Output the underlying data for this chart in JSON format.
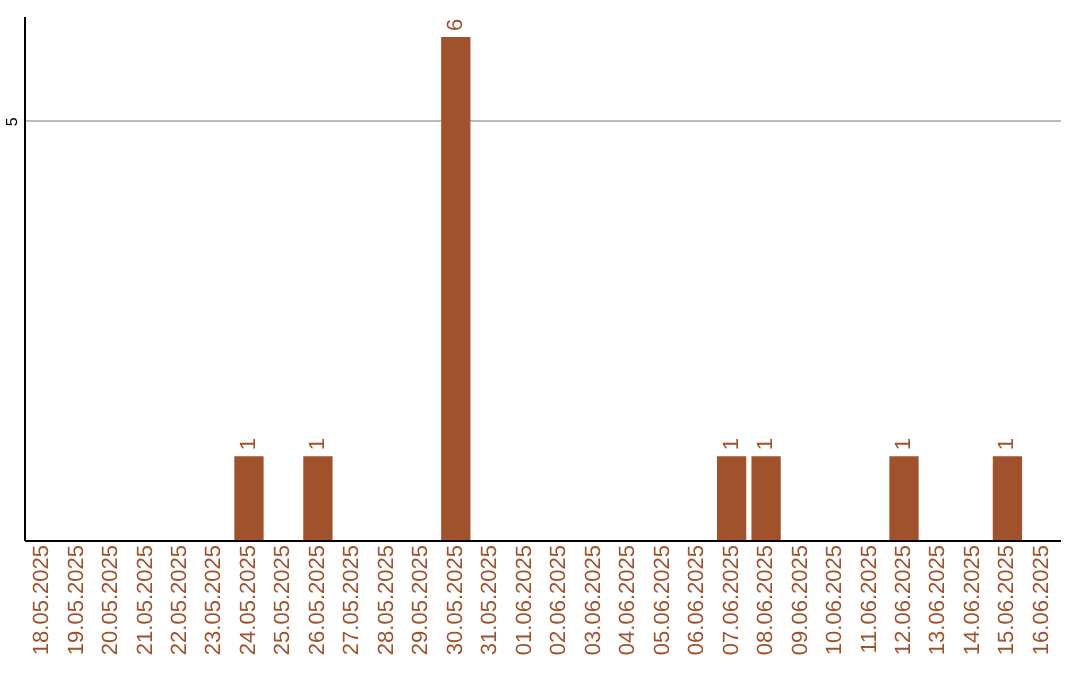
{
  "chart_data": {
    "type": "bar",
    "categories": [
      "18.05.2025",
      "19.05.2025",
      "20.05.2025",
      "21.05.2025",
      "22.05.2025",
      "23.05.2025",
      "24.05.2025",
      "25.05.2025",
      "26.05.2025",
      "27.05.2025",
      "28.05.2025",
      "29.05.2025",
      "30.05.2025",
      "31.05.2025",
      "01.06.2025",
      "02.06.2025",
      "03.06.2025",
      "04.06.2025",
      "05.06.2025",
      "06.06.2025",
      "07.06.2025",
      "08.06.2025",
      "09.06.2025",
      "10.06.2025",
      "11.06.2025",
      "12.06.2025",
      "13.06.2025",
      "14.06.2025",
      "15.06.2025",
      "16.06.2025"
    ],
    "values": [
      0,
      0,
      0,
      0,
      0,
      0,
      1,
      0,
      1,
      0,
      0,
      0,
      6,
      0,
      0,
      0,
      0,
      0,
      0,
      0,
      1,
      1,
      0,
      0,
      0,
      1,
      0,
      0,
      1,
      0
    ],
    "value_labels": [
      null,
      null,
      null,
      null,
      null,
      null,
      "1",
      null,
      "1",
      null,
      null,
      null,
      "6",
      null,
      null,
      null,
      null,
      null,
      null,
      null,
      "1",
      "1",
      null,
      null,
      null,
      "1",
      null,
      null,
      "1",
      null
    ],
    "color": "#a0522d",
    "ylim": [
      0,
      6.25
    ],
    "yticks": [
      5
    ],
    "grid": "y"
  }
}
